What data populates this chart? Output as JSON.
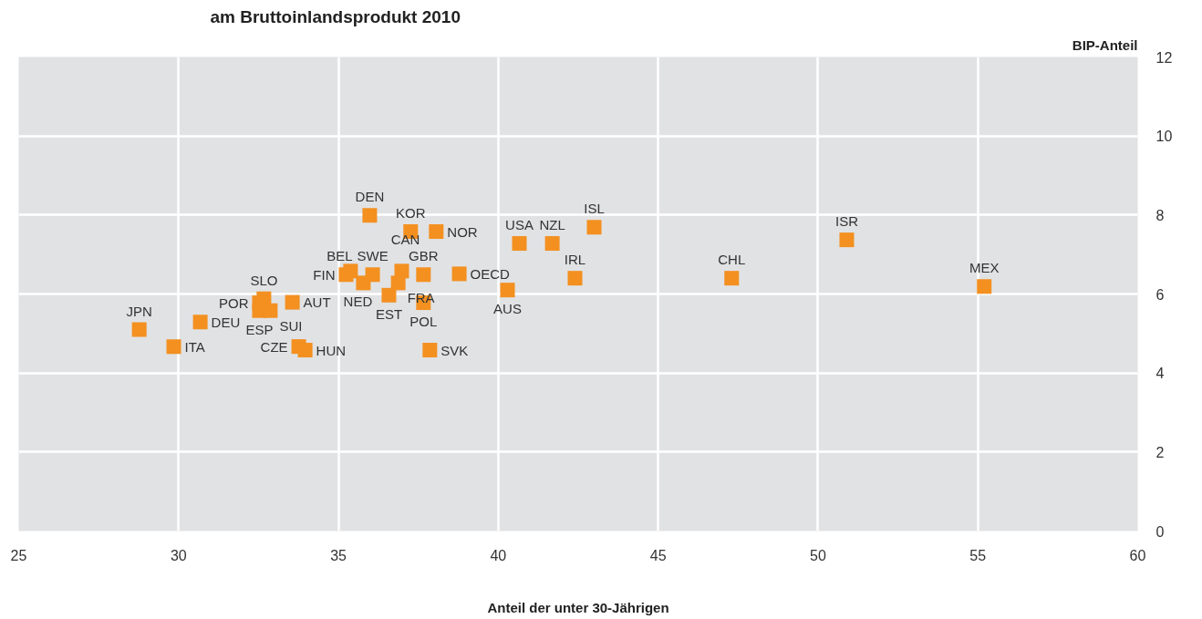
{
  "chart_data": {
    "type": "scatter",
    "title": "am Bruttoinlandsprodukt 2010",
    "xlabel": "Anteil der unter 30-Jährigen",
    "ylabel": "BIP-Anteil",
    "x": [
      28.77,
      29.85,
      30.68,
      32.67,
      32.53,
      32.53,
      32.87,
      33.56,
      33.76,
      33.96,
      35.98,
      37.26,
      38.06,
      35.24,
      35.38,
      36.07,
      35.78,
      36.98,
      36.58,
      36.87,
      37.66,
      37.66,
      37.86,
      38.78,
      40.29,
      40.66,
      41.69,
      43.0,
      42.4,
      47.3,
      50.9,
      55.2
    ],
    "series": [
      {
        "color": "#f39020",
        "values": [
          5.1,
          4.67,
          5.29,
          5.88,
          5.78,
          5.58,
          5.58,
          5.79,
          4.67,
          4.58,
          7.99,
          7.58,
          7.58,
          6.49,
          6.58,
          6.49,
          6.28,
          6.58,
          5.97,
          6.28,
          6.49,
          5.78,
          4.58,
          6.51,
          6.1,
          7.28,
          7.28,
          7.69,
          6.4,
          6.4,
          7.37,
          6.19
        ]
      }
    ],
    "annotations": [
      {
        "text": "JPN",
        "x": 28.77,
        "y": 5.1
      },
      {
        "text": "ITA",
        "x": 29.85,
        "y": 4.67
      },
      {
        "text": "DEU",
        "x": 30.68,
        "y": 5.29
      },
      {
        "text": "SLO",
        "x": 32.67,
        "y": 5.88
      },
      {
        "text": "POR",
        "x": 32.53,
        "y": 5.78
      },
      {
        "text": "ESP",
        "x": 32.53,
        "y": 5.58
      },
      {
        "text": "SUI",
        "x": 32.87,
        "y": 5.58
      },
      {
        "text": "AUT",
        "x": 33.56,
        "y": 5.79
      },
      {
        "text": "CZE",
        "x": 33.76,
        "y": 4.67
      },
      {
        "text": "HUN",
        "x": 33.96,
        "y": 4.58
      },
      {
        "text": "DEN",
        "x": 35.98,
        "y": 7.99
      },
      {
        "text": "KOR",
        "x": 37.26,
        "y": 7.58
      },
      {
        "text": "NOR",
        "x": 38.06,
        "y": 7.58
      },
      {
        "text": "FIN",
        "x": 35.24,
        "y": 6.49
      },
      {
        "text": "BEL",
        "x": 35.38,
        "y": 6.58
      },
      {
        "text": "SWE",
        "x": 36.07,
        "y": 6.49
      },
      {
        "text": "NED",
        "x": 35.78,
        "y": 6.28
      },
      {
        "text": "CAN",
        "x": 36.98,
        "y": 6.58
      },
      {
        "text": "EST",
        "x": 36.58,
        "y": 5.97
      },
      {
        "text": "FRA",
        "x": 36.87,
        "y": 6.28
      },
      {
        "text": "GBR",
        "x": 37.66,
        "y": 6.49
      },
      {
        "text": "POL",
        "x": 37.66,
        "y": 5.78
      },
      {
        "text": "SVK",
        "x": 37.86,
        "y": 4.58
      },
      {
        "text": "OECD",
        "x": 38.78,
        "y": 6.51
      },
      {
        "text": "AUS",
        "x": 40.29,
        "y": 6.1
      },
      {
        "text": "USA",
        "x": 40.66,
        "y": 7.28
      },
      {
        "text": "NZL",
        "x": 41.69,
        "y": 7.28
      },
      {
        "text": "ISL",
        "x": 43.0,
        "y": 7.69
      },
      {
        "text": "IRL",
        "x": 42.4,
        "y": 6.4
      },
      {
        "text": "CHL",
        "x": 47.3,
        "y": 6.4
      },
      {
        "text": "ISR",
        "x": 50.9,
        "y": 7.37
      },
      {
        "text": "MEX",
        "x": 55.2,
        "y": 6.19
      }
    ],
    "xlim": [
      25,
      60
    ],
    "xticks": [
      25,
      30,
      35,
      40,
      45,
      50,
      55,
      60
    ],
    "ylim": [
      0,
      12
    ],
    "yticks": [
      0,
      2,
      4,
      6,
      8,
      10,
      12
    ],
    "grid": true,
    "marker": "square"
  }
}
